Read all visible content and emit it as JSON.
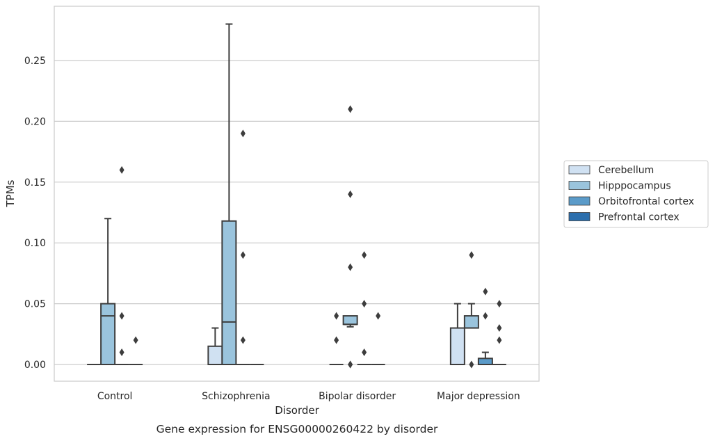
{
  "chart_data": {
    "type": "box",
    "xlabel": "Disorder",
    "ylabel": "TPMs",
    "caption": "Gene expression for ENSG00000260422 by disorder",
    "ylim": [
      -0.013,
      0.295
    ],
    "yticks": [
      "0.00",
      "0.05",
      "0.10",
      "0.15",
      "0.20",
      "0.25"
    ],
    "ytick_values": [
      0,
      0.05,
      0.1,
      0.15,
      0.2,
      0.25
    ],
    "grid": "horizontal",
    "legend_position": "right",
    "categories": [
      "Control",
      "Schizophrenia",
      "Bipolar disorder",
      "Major depression"
    ],
    "series": [
      {
        "name": "Cerebellum",
        "color": "#d0e1f2",
        "boxes": [
          {
            "q1": 0,
            "median": 0,
            "q3": 0,
            "whisker_low": 0,
            "whisker_high": 0,
            "outliers": []
          },
          {
            "q1": 0,
            "median": 0,
            "q3": 0.015,
            "whisker_low": 0,
            "whisker_high": 0.03,
            "outliers": []
          },
          {
            "q1": 0,
            "median": 0,
            "q3": 0,
            "whisker_low": 0,
            "whisker_high": 0,
            "outliers": [
              0.02,
              0.04
            ]
          },
          {
            "q1": 0,
            "median": 0,
            "q3": 0.03,
            "whisker_low": 0,
            "whisker_high": 0.05,
            "outliers": []
          }
        ]
      },
      {
        "name": "Hipppocampus",
        "color": "#9ac4dd",
        "boxes": [
          {
            "q1": 0,
            "median": 0.04,
            "q3": 0.05,
            "whisker_low": 0,
            "whisker_high": 0.12,
            "outliers": []
          },
          {
            "q1": 0,
            "median": 0.035,
            "q3": 0.118,
            "whisker_low": 0,
            "whisker_high": 0.28,
            "outliers": []
          },
          {
            "q1": 0.033,
            "median": 0.033,
            "q3": 0.04,
            "whisker_low": 0.031,
            "whisker_high": 0.04,
            "outliers": [
              0.21,
              0.14,
              0.08,
              0.0,
              0.0
            ]
          },
          {
            "q1": 0.03,
            "median": 0.03,
            "q3": 0.04,
            "whisker_low": 0.03,
            "whisker_high": 0.05,
            "outliers": [
              0.09,
              0.0
            ]
          }
        ]
      },
      {
        "name": "Orbitofrontal cortex",
        "color": "#5b9bc9",
        "boxes": [
          {
            "q1": 0,
            "median": 0,
            "q3": 0,
            "whisker_low": 0,
            "whisker_high": 0,
            "outliers": [
              0.16,
              0.04,
              0.01
            ]
          },
          {
            "q1": 0,
            "median": 0,
            "q3": 0,
            "whisker_low": 0,
            "whisker_high": 0,
            "outliers": [
              0.19,
              0.09,
              0.02
            ]
          },
          {
            "q1": 0,
            "median": 0,
            "q3": 0,
            "whisker_low": 0,
            "whisker_high": 0,
            "outliers": [
              0.09,
              0.05,
              0.01
            ]
          },
          {
            "q1": 0,
            "median": 0,
            "q3": 0.005,
            "whisker_low": 0,
            "whisker_high": 0.01,
            "outliers": [
              0.06,
              0.04
            ]
          }
        ]
      },
      {
        "name": "Prefrontal cortex",
        "color": "#2c6fad",
        "boxes": [
          {
            "q1": 0,
            "median": 0,
            "q3": 0,
            "whisker_low": 0,
            "whisker_high": 0,
            "outliers": [
              0.02
            ]
          },
          {
            "q1": 0,
            "median": 0,
            "q3": 0,
            "whisker_low": 0,
            "whisker_high": 0,
            "outliers": []
          },
          {
            "q1": 0,
            "median": 0,
            "q3": 0,
            "whisker_low": 0,
            "whisker_high": 0,
            "outliers": [
              0.04
            ]
          },
          {
            "q1": 0,
            "median": 0,
            "q3": 0,
            "whisker_low": 0,
            "whisker_high": 0,
            "outliers": [
              0.05,
              0.03,
              0.02
            ]
          }
        ]
      }
    ]
  }
}
